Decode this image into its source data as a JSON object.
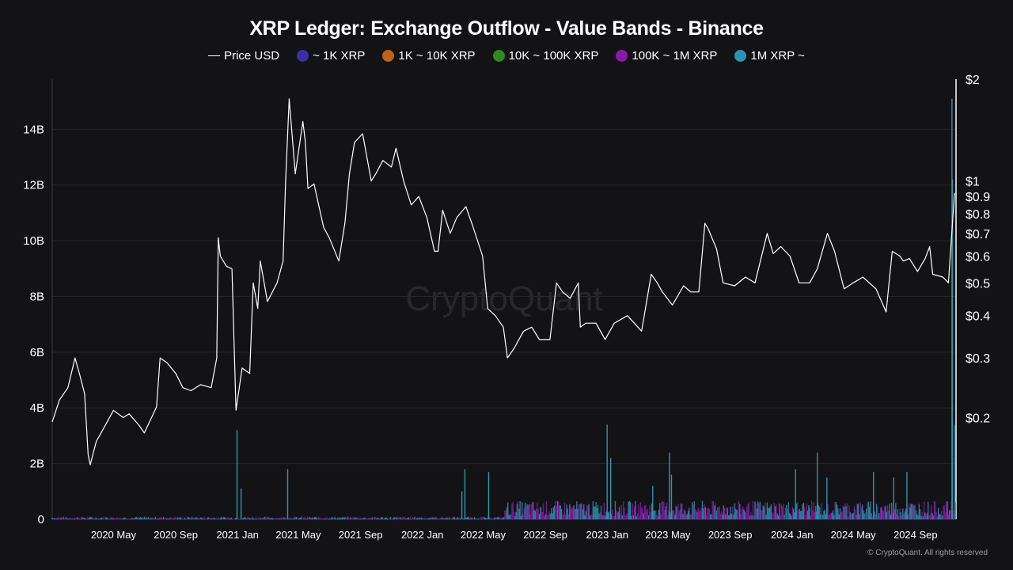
{
  "chart_data": {
    "type": "area",
    "title": "XRP Ledger: Exchange Outflow - Value Bands - Binance",
    "xlabel": "",
    "ylabel": "",
    "legend": [
      {
        "label": "Price USD",
        "color": "#ffffff",
        "marker": "line"
      },
      {
        "label": "~ 1K XRP",
        "color": "#3b2fa6",
        "marker": "dot"
      },
      {
        "label": "1K ~ 10K XRP",
        "color": "#c0601a",
        "marker": "dot"
      },
      {
        "label": "10K ~ 100K XRP",
        "color": "#2f8a1e",
        "marker": "dot"
      },
      {
        "label": "100K ~ 1M XRP",
        "color": "#8a1aa6",
        "marker": "dot"
      },
      {
        "label": "1M XRP ~",
        "color": "#2e93b3",
        "marker": "dot"
      }
    ],
    "legend_position": "top-center",
    "x_ticks": [
      "2020 May",
      "2020 Sep",
      "2021 Jan",
      "2021 May",
      "2021 Sep",
      "2022 Jan",
      "2022 May",
      "2022 Sep",
      "2023 Jan",
      "2023 May",
      "2023 Sep",
      "2024 Jan",
      "2024 May",
      "2024 Sep"
    ],
    "x_range": [
      "2020-01-01",
      "2024-11-20"
    ],
    "y_left": {
      "ticks": [
        "0",
        "2B",
        "4B",
        "6B",
        "8B",
        "10B",
        "12B",
        "14B"
      ],
      "range": [
        0,
        15800000000
      ]
    },
    "y_right": {
      "scale": "log",
      "ticks": [
        "$2",
        "$1",
        "$0.9",
        "$0.8",
        "$0.7",
        "$0.6",
        "$0.5",
        "$0.4",
        "$0.3",
        "$0.2"
      ],
      "range": [
        0.1,
        2
      ]
    },
    "grid": true,
    "price_series": {
      "name": "Price USD",
      "points": [
        [
          "2020-01-01",
          0.194
        ],
        [
          "2020-01-15",
          0.225
        ],
        [
          "2020-02-01",
          0.245
        ],
        [
          "2020-02-15",
          0.3
        ],
        [
          "2020-02-25",
          0.265
        ],
        [
          "2020-03-05",
          0.235
        ],
        [
          "2020-03-12",
          0.155
        ],
        [
          "2020-03-16",
          0.145
        ],
        [
          "2020-03-28",
          0.17
        ],
        [
          "2020-04-15",
          0.19
        ],
        [
          "2020-05-01",
          0.21
        ],
        [
          "2020-05-20",
          0.2
        ],
        [
          "2020-06-01",
          0.205
        ],
        [
          "2020-06-20",
          0.19
        ],
        [
          "2020-07-01",
          0.18
        ],
        [
          "2020-07-25",
          0.215
        ],
        [
          "2020-08-01",
          0.3
        ],
        [
          "2020-08-15",
          0.29
        ],
        [
          "2020-09-01",
          0.27
        ],
        [
          "2020-09-15",
          0.245
        ],
        [
          "2020-10-01",
          0.24
        ],
        [
          "2020-10-20",
          0.25
        ],
        [
          "2020-11-10",
          0.245
        ],
        [
          "2020-11-21",
          0.3
        ],
        [
          "2020-11-24",
          0.68
        ],
        [
          "2020-11-28",
          0.6
        ],
        [
          "2020-12-10",
          0.56
        ],
        [
          "2020-12-21",
          0.55
        ],
        [
          "2020-12-29",
          0.21
        ],
        [
          "2021-01-10",
          0.28
        ],
        [
          "2021-01-25",
          0.27
        ],
        [
          "2021-02-01",
          0.5
        ],
        [
          "2021-02-10",
          0.42
        ],
        [
          "2021-02-15",
          0.58
        ],
        [
          "2021-03-01",
          0.44
        ],
        [
          "2021-03-20",
          0.5
        ],
        [
          "2021-04-01",
          0.58
        ],
        [
          "2021-04-06",
          1.0
        ],
        [
          "2021-04-13",
          1.75
        ],
        [
          "2021-04-25",
          1.05
        ],
        [
          "2021-05-10",
          1.5
        ],
        [
          "2021-05-15",
          1.3
        ],
        [
          "2021-05-20",
          0.95
        ],
        [
          "2021-06-01",
          0.98
        ],
        [
          "2021-06-20",
          0.73
        ],
        [
          "2021-07-01",
          0.68
        ],
        [
          "2021-07-20",
          0.58
        ],
        [
          "2021-08-01",
          0.75
        ],
        [
          "2021-08-10",
          1.05
        ],
        [
          "2021-08-20",
          1.3
        ],
        [
          "2021-09-05",
          1.38
        ],
        [
          "2021-09-22",
          1.0
        ],
        [
          "2021-10-01",
          1.05
        ],
        [
          "2021-10-15",
          1.15
        ],
        [
          "2021-11-01",
          1.1
        ],
        [
          "2021-11-10",
          1.25
        ],
        [
          "2021-11-25",
          1.0
        ],
        [
          "2021-12-10",
          0.85
        ],
        [
          "2021-12-25",
          0.9
        ],
        [
          "2022-01-10",
          0.78
        ],
        [
          "2022-01-25",
          0.62
        ],
        [
          "2022-02-01",
          0.62
        ],
        [
          "2022-02-10",
          0.82
        ],
        [
          "2022-02-25",
          0.7
        ],
        [
          "2022-03-10",
          0.78
        ],
        [
          "2022-03-28",
          0.84
        ],
        [
          "2022-04-10",
          0.74
        ],
        [
          "2022-04-30",
          0.6
        ],
        [
          "2022-05-10",
          0.42
        ],
        [
          "2022-05-25",
          0.4
        ],
        [
          "2022-06-10",
          0.37
        ],
        [
          "2022-06-18",
          0.3
        ],
        [
          "2022-07-01",
          0.32
        ],
        [
          "2022-07-20",
          0.36
        ],
        [
          "2022-08-05",
          0.37
        ],
        [
          "2022-08-20",
          0.34
        ],
        [
          "2022-09-10",
          0.34
        ],
        [
          "2022-09-23",
          0.5
        ],
        [
          "2022-10-05",
          0.47
        ],
        [
          "2022-10-20",
          0.45
        ],
        [
          "2022-11-05",
          0.5
        ],
        [
          "2022-11-09",
          0.37
        ],
        [
          "2022-11-20",
          0.38
        ],
        [
          "2022-12-10",
          0.38
        ],
        [
          "2022-12-28",
          0.34
        ],
        [
          "2023-01-15",
          0.38
        ],
        [
          "2023-02-10",
          0.4
        ],
        [
          "2023-03-10",
          0.36
        ],
        [
          "2023-03-29",
          0.53
        ],
        [
          "2023-04-10",
          0.5
        ],
        [
          "2023-04-20",
          0.47
        ],
        [
          "2023-05-10",
          0.43
        ],
        [
          "2023-06-01",
          0.49
        ],
        [
          "2023-06-15",
          0.47
        ],
        [
          "2023-07-01",
          0.47
        ],
        [
          "2023-07-13",
          0.75
        ],
        [
          "2023-07-20",
          0.72
        ],
        [
          "2023-08-05",
          0.63
        ],
        [
          "2023-08-18",
          0.5
        ],
        [
          "2023-09-10",
          0.49
        ],
        [
          "2023-10-01",
          0.52
        ],
        [
          "2023-10-20",
          0.5
        ],
        [
          "2023-11-13",
          0.7
        ],
        [
          "2023-11-25",
          0.61
        ],
        [
          "2023-12-10",
          0.64
        ],
        [
          "2023-12-28",
          0.6
        ],
        [
          "2024-01-15",
          0.5
        ],
        [
          "2024-02-05",
          0.5
        ],
        [
          "2024-02-20",
          0.55
        ],
        [
          "2024-03-11",
          0.7
        ],
        [
          "2024-03-25",
          0.62
        ],
        [
          "2024-04-13",
          0.48
        ],
        [
          "2024-05-01",
          0.5
        ],
        [
          "2024-05-20",
          0.52
        ],
        [
          "2024-06-15",
          0.48
        ],
        [
          "2024-07-05",
          0.41
        ],
        [
          "2024-07-17",
          0.62
        ],
        [
          "2024-08-01",
          0.6
        ],
        [
          "2024-08-08",
          0.58
        ],
        [
          "2024-08-20",
          0.59
        ],
        [
          "2024-09-05",
          0.54
        ],
        [
          "2024-09-20",
          0.59
        ],
        [
          "2024-09-29",
          0.64
        ],
        [
          "2024-10-05",
          0.53
        ],
        [
          "2024-10-25",
          0.52
        ],
        [
          "2024-11-05",
          0.5
        ],
        [
          "2024-11-13",
          0.75
        ],
        [
          "2024-11-17",
          0.92
        ]
      ]
    },
    "outflow_spikes": [
      [
        "2020-01-01",
        50000000
      ],
      [
        "2020-12-31",
        3200000000
      ],
      [
        "2021-01-08",
        1100000000
      ],
      [
        "2021-04-10",
        1800000000
      ],
      [
        "2022-03-20",
        1000000000
      ],
      [
        "2022-03-26",
        1800000000
      ],
      [
        "2022-05-12",
        1700000000
      ],
      [
        "2023-01-01",
        3400000000
      ],
      [
        "2023-01-08",
        2200000000
      ],
      [
        "2023-04-01",
        1200000000
      ],
      [
        "2023-05-04",
        2400000000
      ],
      [
        "2023-05-08",
        1600000000
      ],
      [
        "2024-01-08",
        1800000000
      ],
      [
        "2024-02-20",
        2400000000
      ],
      [
        "2024-03-10",
        1500000000
      ],
      [
        "2024-06-10",
        1700000000
      ],
      [
        "2024-07-20",
        1500000000
      ],
      [
        "2024-08-15",
        1700000000
      ],
      [
        "2024-11-12",
        15100000000
      ],
      [
        "2024-11-13",
        12200000000
      ],
      [
        "2024-11-18",
        3400000000
      ]
    ]
  },
  "credit": "© CryptoQuant. All rights reserved",
  "watermark": "CryptoQuant"
}
